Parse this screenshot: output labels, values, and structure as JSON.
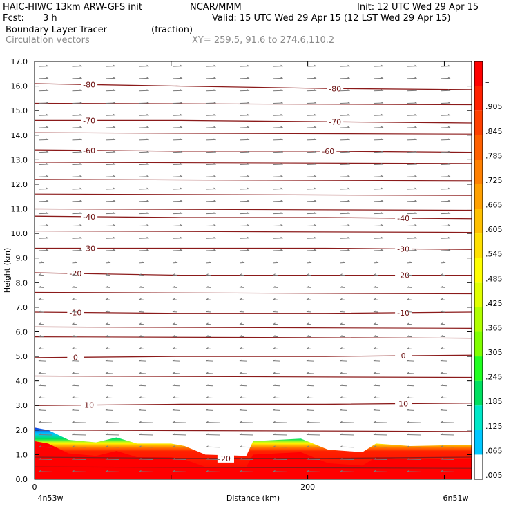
{
  "header": {
    "model": "HAIC-HIWC 13km ARW-GFS init",
    "org": "NCAR/MMM",
    "init": "Init: 12 UTC Wed 29 Apr 15",
    "fcst_label": "Fcst:",
    "fcst_value": "3 h",
    "valid": "Valid: 15 UTC Wed 29 Apr 15 (12 LST Wed 29 Apr 15)",
    "field": "Boundary Layer Tracer",
    "field_units": "(fraction)",
    "vectors": "Circulation vectors",
    "xy": "XY= 259.5, 91.6 to 274.6,110.2"
  },
  "colors": {
    "contour": "#8b1a1a",
    "vector": "#7a7a7a",
    "fill_top": "#1030e0"
  },
  "chart_data": {
    "type": "heatmap",
    "xlabel": "Distance (km)",
    "ylabel": "Height (km)",
    "xlim": [
      0,
      320
    ],
    "ylim": [
      0,
      17
    ],
    "x_ticks": [
      "0",
      "200"
    ],
    "y_ticks": [
      "0.0",
      "1.0",
      "2.0",
      "3.0",
      "4.0",
      "5.0",
      "6.0",
      "7.0",
      "8.0",
      "9.0",
      "10.0",
      "11.0",
      "12.0",
      "13.0",
      "14.0",
      "15.0",
      "16.0",
      "17.0"
    ],
    "x_left_label": "4n53w",
    "x_right_label": "6n51w",
    "colorbar_labels": [
      ".005",
      ".065",
      ".125",
      ".185",
      ".245",
      ".305",
      ".365",
      ".425",
      ".485",
      ".545",
      ".605",
      ".665",
      ".725",
      ".785",
      ".845",
      ".905",
      "–"
    ],
    "colorbar_colors": [
      "#ffffff",
      "#00c8ff",
      "#00e8c8",
      "#00e060",
      "#20ff20",
      "#80ff00",
      "#b0ff00",
      "#e0ff00",
      "#ffff00",
      "#ffe000",
      "#ffc000",
      "#ffa000",
      "#ff8000",
      "#ff6000",
      "#ff4000",
      "#ff2000",
      "#ff0000"
    ],
    "tracer_top_km": [
      [
        0,
        2.1
      ],
      [
        10,
        2.0
      ],
      [
        25,
        1.6
      ],
      [
        45,
        1.5
      ],
      [
        60,
        1.7
      ],
      [
        75,
        1.45
      ],
      [
        100,
        1.45
      ],
      [
        110,
        1.35
      ],
      [
        125,
        1.0
      ],
      [
        155,
        0.95
      ],
      [
        160,
        1.55
      ],
      [
        195,
        1.65
      ],
      [
        215,
        1.2
      ],
      [
        240,
        1.1
      ],
      [
        250,
        1.45
      ],
      [
        275,
        1.35
      ],
      [
        320,
        1.4
      ]
    ],
    "temperature_contours": [
      {
        "label": "-80",
        "y_km": [
          16.1,
          16.0,
          15.9,
          15.85
        ]
      },
      {
        "label": "-70",
        "y_km": [
          14.6,
          14.6,
          14.55,
          14.5
        ]
      },
      {
        "label": "-60",
        "y_km": [
          13.4,
          13.35,
          13.35,
          13.3
        ]
      },
      {
        "label": "-40",
        "y_km": [
          10.7,
          10.65,
          10.65,
          10.6
        ]
      },
      {
        "label": "-30",
        "y_km": [
          9.4,
          9.4,
          9.4,
          9.35
        ]
      },
      {
        "label": "-20",
        "y_km": [
          8.4,
          8.3,
          8.3,
          8.3
        ]
      },
      {
        "label": "-10",
        "y_km": [
          6.8,
          6.75,
          6.75,
          6.8
        ]
      },
      {
        "label": "0",
        "y_km": [
          4.95,
          5.0,
          5.0,
          5.05
        ]
      },
      {
        "label": "10",
        "y_km": [
          3.0,
          3.05,
          3.05,
          3.1
        ]
      },
      {
        "label": "20",
        "y_km": [
          0.9,
          0.85,
          0.85,
          0.9
        ]
      }
    ],
    "unlabeled_contours_km": [
      15.3,
      14.1,
      12.9,
      12.2,
      11.6,
      11.0,
      10.1,
      7.6,
      6.2,
      5.8,
      4.2,
      2.0,
      0.5
    ],
    "contour_label_x_km": [
      [
        40,
        220
      ],
      [
        40,
        220
      ],
      [
        40,
        215
      ],
      [
        40,
        270
      ],
      [
        40,
        270
      ],
      [
        30,
        270
      ],
      [
        30,
        270
      ],
      [
        30,
        270
      ],
      [
        40,
        270
      ],
      [
        140,
        140
      ]
    ]
  }
}
